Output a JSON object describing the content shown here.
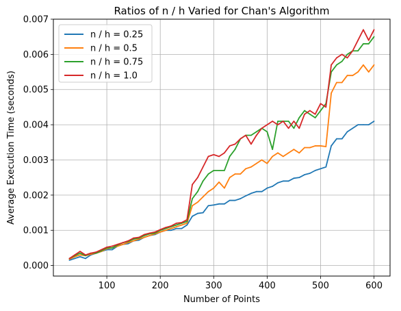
{
  "chart_data": {
    "type": "line",
    "title": "Ratios of n / h Varied for Chan's Algorithm",
    "xlabel": "Number of Points",
    "ylabel": "Average Execution Time (seconds)",
    "xlim": [
      0,
      630
    ],
    "ylim": [
      -0.0003,
      0.007
    ],
    "xticks": [
      100,
      200,
      300,
      400,
      500,
      600
    ],
    "xtick_labels": [
      "100",
      "200",
      "300",
      "400",
      "500",
      "600"
    ],
    "yticks": [
      0.0,
      0.001,
      0.002,
      0.003,
      0.004,
      0.005,
      0.006,
      0.007
    ],
    "ytick_labels": [
      "0.000",
      "0.001",
      "0.002",
      "0.003",
      "0.004",
      "0.005",
      "0.006",
      "0.007"
    ],
    "grid": true,
    "legend_position": "upper-left",
    "x": [
      30,
      40,
      50,
      60,
      70,
      80,
      90,
      100,
      110,
      120,
      130,
      140,
      150,
      160,
      170,
      180,
      190,
      200,
      210,
      220,
      230,
      240,
      250,
      260,
      270,
      280,
      290,
      300,
      310,
      320,
      330,
      340,
      350,
      360,
      370,
      380,
      390,
      400,
      410,
      420,
      430,
      440,
      450,
      460,
      470,
      480,
      490,
      500,
      510,
      520,
      530,
      540,
      550,
      560,
      570,
      580,
      590,
      600
    ],
    "series": [
      {
        "name": "n / h = 0.25",
        "color": "#1f77b4",
        "values": [
          0.00015,
          0.0002,
          0.00025,
          0.0002,
          0.0003,
          0.00035,
          0.0004,
          0.00045,
          0.00045,
          0.00055,
          0.0006,
          0.00062,
          0.0007,
          0.00072,
          0.0008,
          0.00085,
          0.00088,
          0.00095,
          0.001,
          0.001,
          0.00105,
          0.00105,
          0.00115,
          0.0014,
          0.00148,
          0.0015,
          0.0017,
          0.00172,
          0.00175,
          0.00175,
          0.00185,
          0.00185,
          0.0019,
          0.00198,
          0.00205,
          0.0021,
          0.0021,
          0.0022,
          0.00225,
          0.00235,
          0.0024,
          0.0024,
          0.00248,
          0.0025,
          0.00258,
          0.00262,
          0.0027,
          0.00275,
          0.0028,
          0.0034,
          0.0036,
          0.0036,
          0.0038,
          0.0039,
          0.004,
          0.004,
          0.004,
          0.0041
        ]
      },
      {
        "name": "n / h = 0.5",
        "color": "#ff7f0e",
        "values": [
          0.00018,
          0.00025,
          0.0003,
          0.00028,
          0.00032,
          0.00035,
          0.0004,
          0.00048,
          0.0005,
          0.00055,
          0.0006,
          0.00065,
          0.0007,
          0.00075,
          0.0008,
          0.00085,
          0.0009,
          0.00095,
          0.001,
          0.00105,
          0.0011,
          0.00115,
          0.0012,
          0.0017,
          0.0018,
          0.00195,
          0.0021,
          0.0022,
          0.00237,
          0.0022,
          0.0025,
          0.0026,
          0.0026,
          0.00275,
          0.0028,
          0.0029,
          0.003,
          0.0029,
          0.0031,
          0.0032,
          0.0031,
          0.0032,
          0.0033,
          0.0032,
          0.00335,
          0.00335,
          0.0034,
          0.0034,
          0.00338,
          0.0049,
          0.0052,
          0.0052,
          0.0054,
          0.0054,
          0.0055,
          0.0057,
          0.0055,
          0.0057
        ]
      },
      {
        "name": "n / h = 0.75",
        "color": "#2ca02c",
        "values": [
          0.0002,
          0.00028,
          0.00035,
          0.00028,
          0.00035,
          0.00035,
          0.00042,
          0.0005,
          0.0005,
          0.00058,
          0.00065,
          0.00068,
          0.00075,
          0.00078,
          0.00085,
          0.0009,
          0.00092,
          0.001,
          0.00105,
          0.0011,
          0.00115,
          0.0012,
          0.00125,
          0.0019,
          0.0021,
          0.0024,
          0.0026,
          0.0027,
          0.0027,
          0.0027,
          0.0031,
          0.0033,
          0.0036,
          0.0037,
          0.0037,
          0.0038,
          0.0039,
          0.0038,
          0.0033,
          0.0041,
          0.0041,
          0.0041,
          0.0039,
          0.0042,
          0.0044,
          0.0043,
          0.0042,
          0.0044,
          0.0046,
          0.0055,
          0.0057,
          0.0058,
          0.006,
          0.0061,
          0.0061,
          0.0063,
          0.0063,
          0.0065
        ]
      },
      {
        "name": "n / h = 1.0",
        "color": "#d62728",
        "values": [
          0.0002,
          0.0003,
          0.0004,
          0.0003,
          0.00035,
          0.00038,
          0.00045,
          0.00052,
          0.00055,
          0.0006,
          0.00065,
          0.0007,
          0.00078,
          0.0008,
          0.00088,
          0.00092,
          0.00095,
          0.00102,
          0.00108,
          0.00112,
          0.0012,
          0.00122,
          0.0013,
          0.0023,
          0.0025,
          0.0028,
          0.0031,
          0.00315,
          0.0031,
          0.0032,
          0.0034,
          0.00345,
          0.0036,
          0.0037,
          0.00345,
          0.0037,
          0.0039,
          0.004,
          0.0041,
          0.004,
          0.0041,
          0.0039,
          0.0041,
          0.0039,
          0.0043,
          0.0044,
          0.0043,
          0.0046,
          0.0045,
          0.0057,
          0.0059,
          0.006,
          0.0059,
          0.0061,
          0.0064,
          0.0067,
          0.0064,
          0.0067
        ]
      }
    ]
  }
}
